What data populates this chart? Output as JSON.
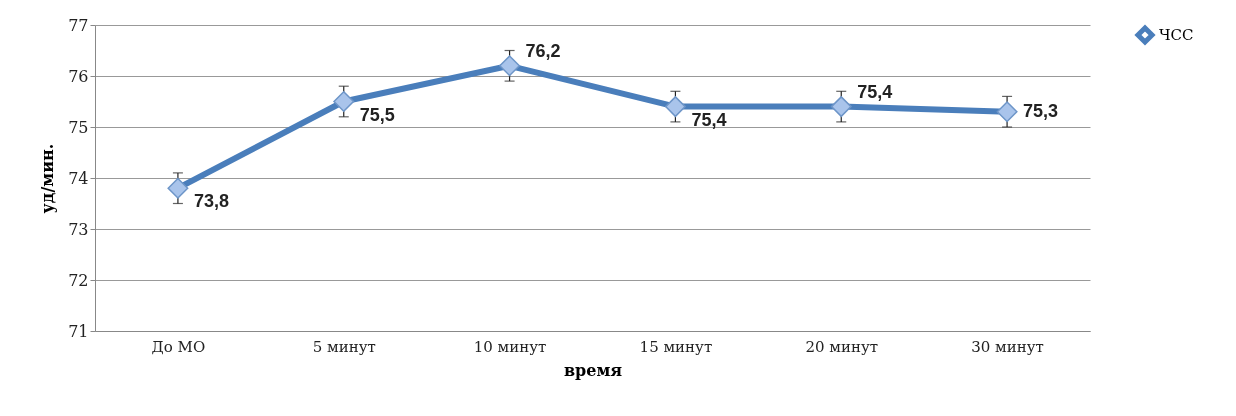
{
  "chart_data": {
    "type": "line",
    "xlabel": "время",
    "ylabel": "уд/мин.",
    "categories": [
      "До МО",
      "5 минут",
      "10 минут",
      "15 минут",
      "20 минут",
      "30 минут"
    ],
    "series": [
      {
        "name": "ЧСС",
        "color": "#4a7ebb",
        "values": [
          73.8,
          75.5,
          76.2,
          75.4,
          75.4,
          75.3
        ],
        "errors": [
          0.3,
          0.3,
          0.3,
          0.3,
          0.3,
          0.3
        ],
        "value_labels": [
          "73,8",
          "75,5",
          "76,2",
          "75,4",
          "75,4",
          "75,3"
        ]
      }
    ],
    "ylim": [
      71,
      77
    ],
    "yticks": [
      71,
      72,
      73,
      74,
      75,
      76,
      77
    ],
    "grid": "y",
    "legend": "right",
    "marker": "diamond",
    "line_style": "solid"
  }
}
